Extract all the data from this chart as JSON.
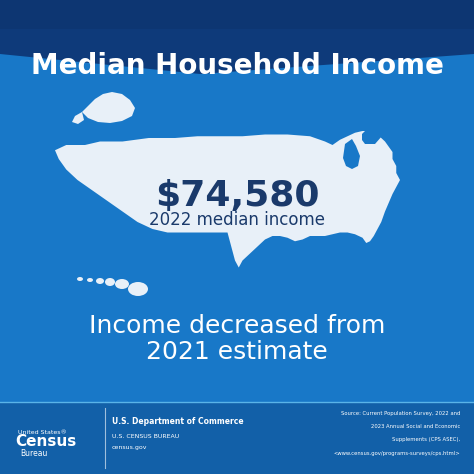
{
  "bg_color": "#1878c8",
  "footer_bg": "#1260a8",
  "header_dark": "#0e3a7a",
  "title": "Median Household Income",
  "title_color": "#ffffff",
  "income_value": "$74,580",
  "income_label": "2022 median income",
  "income_value_color": "#1a3a6b",
  "income_label_color": "#1a3a6b",
  "subtitle_line1": "Income decreased from",
  "subtitle_line2": "2021 estimate",
  "subtitle_color": "#ffffff",
  "footer_text_color": "#ffffff",
  "map_color": "#e8f0f8",
  "source_text_line1": "Source: Current Population Survey, 2022 and",
  "source_text_line2": "2023 Annual Social and Economic",
  "source_text_line3": "Supplements (CPS ASEC),",
  "source_text_line4": "<www.census.gov/programs-surveys/cps.html>",
  "figsize": [
    4.74,
    4.74
  ],
  "dpi": 100
}
